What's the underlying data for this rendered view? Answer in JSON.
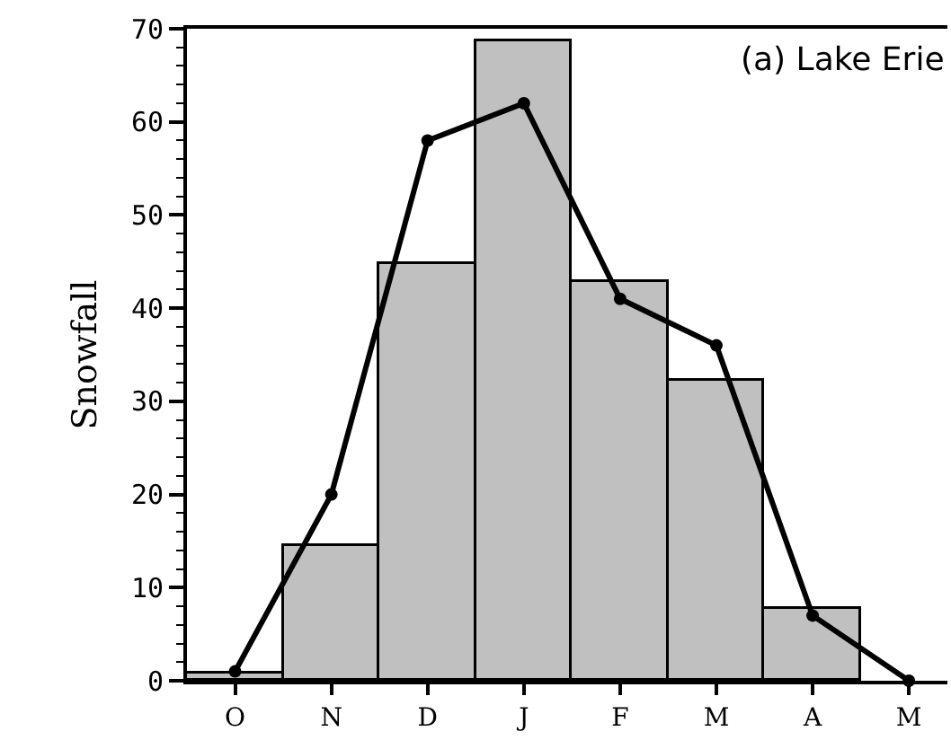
{
  "chart_data": {
    "type": "bar",
    "ylabel": "Snowfall",
    "categories": [
      "O",
      "N",
      "D",
      "J",
      "F",
      "M",
      "A",
      "M"
    ],
    "series": [
      {
        "color": "#c0c0c0",
        "values": [
          0.8,
          14.5,
          44.7,
          68.6,
          42.9,
          32.2,
          7.7,
          null
        ]
      },
      {
        "type": "line",
        "color": "#000000",
        "marker": "circle",
        "values": [
          1,
          20,
          58,
          62,
          41,
          36,
          7,
          0
        ]
      }
    ],
    "ylim": [
      0,
      70
    ],
    "yticks": [
      0,
      {
        "value": 2,
        "label": null
      },
      {
        "value": 4,
        "label": null
      },
      {
        "value": 6,
        "label": null
      },
      {
        "value": 8,
        "label": null
      },
      10,
      {
        "value": 12,
        "label": null
      },
      {
        "value": 14,
        "label": null
      },
      {
        "value": 16,
        "label": null
      },
      {
        "value": 18,
        "label": null
      },
      20,
      {
        "value": 22,
        "label": null
      },
      {
        "value": 24,
        "label": null
      },
      {
        "value": 26,
        "label": null
      },
      {
        "value": 28,
        "label": null
      },
      30,
      {
        "value": 32,
        "label": null
      },
      {
        "value": 34,
        "label": null
      },
      {
        "value": 36,
        "label": null
      },
      {
        "value": 38,
        "label": null
      },
      40,
      {
        "value": 42,
        "label": null
      },
      {
        "value": 44,
        "label": null
      },
      {
        "value": 46,
        "label": null
      },
      {
        "value": 48,
        "label": null
      },
      50,
      {
        "value": 52,
        "label": null
      },
      {
        "value": 54,
        "label": null
      },
      {
        "value": 56,
        "label": null
      },
      {
        "value": 58,
        "label": null
      },
      60,
      {
        "value": 62,
        "label": null
      },
      {
        "value": 64,
        "label": null
      },
      {
        "value": 66,
        "label": null
      },
      {
        "value": 68,
        "label": null
      },
      70
    ],
    "annotations": [
      "(a) Lake Erie"
    ]
  }
}
